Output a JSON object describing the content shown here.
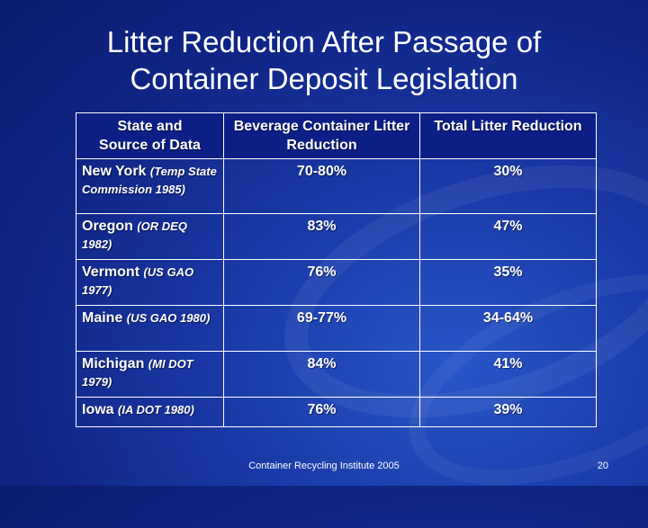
{
  "title": {
    "line1": "Litter Reduction After Passage of",
    "line2": "Container Deposit Legislation"
  },
  "table": {
    "headers": {
      "state_line1": "State and",
      "state_line2": "Source of Data",
      "beverage": "Beverage Container Litter Reduction",
      "total": "Total Litter Reduction"
    },
    "rows": [
      {
        "state": "New York",
        "source": "(Temp State Commission 1985)",
        "beverage": "70-80%",
        "total": "30%"
      },
      {
        "state": "Oregon",
        "source": "(OR DEQ 1982)",
        "beverage": "83%",
        "total": "47%"
      },
      {
        "state": "Vermont",
        "source": "(US GAO 1977)",
        "beverage": "76%",
        "total": "35%"
      },
      {
        "state": "Maine",
        "source": "(US GAO 1980)",
        "beverage": "69-77%",
        "total": "34-64%"
      },
      {
        "state": "Michigan",
        "source": "(MI DOT 1979)",
        "beverage": "84%",
        "total": "41%"
      },
      {
        "state": "Iowa",
        "source": "(IA DOT 1980)",
        "beverage": "76%",
        "total": "39%"
      }
    ]
  },
  "footer": {
    "text": "Container Recycling Institute   2005",
    "page_number": "20"
  }
}
